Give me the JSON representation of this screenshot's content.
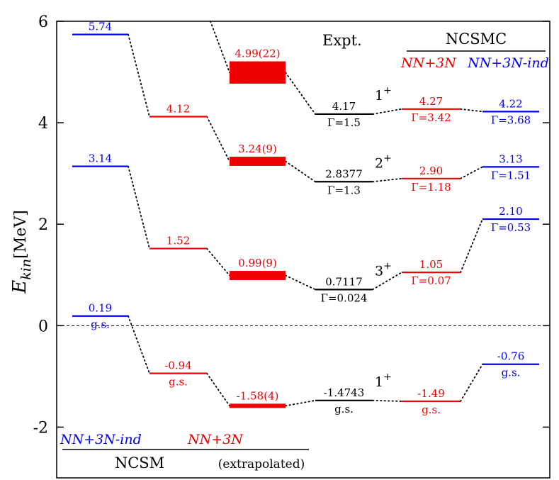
{
  "chart_data": {
    "type": "level-scheme",
    "ylabel": "E_kin [MeV]",
    "ylabel_main": "E",
    "ylabel_sub": "kin",
    "ylabel_unit": "[MeV]",
    "ylim": [
      -3,
      6
    ],
    "yticks": [
      {
        "value": -2,
        "label": "-2"
      },
      {
        "value": 0,
        "label": "0"
      },
      {
        "value": 2,
        "label": "2"
      },
      {
        "value": 4,
        "label": "4"
      },
      {
        "value": 6,
        "label": "6"
      }
    ],
    "zero_line": true,
    "headers": {
      "expt": "Expt.",
      "ncsmc": "NCSMC",
      "ncsmc_red": "NN+3N",
      "ncsmc_blue": "NN+3N-ind",
      "ncsm": "NCSM",
      "ncsm_blue": "NN+3N-ind",
      "ncsm_red": "NN+3N",
      "extrapolated": "(extrapolated)"
    },
    "colors": {
      "blue": "#0000ee",
      "red": "#ee0000",
      "black": "#000000"
    },
    "states": [
      "1+",
      "2+",
      "3+",
      "1+ (g.s.)"
    ],
    "spin_labels": [
      {
        "state": "1+",
        "value": 4.17
      },
      {
        "state": "2+",
        "value": 2.8377
      },
      {
        "state": "3+",
        "value": 0.7117
      },
      {
        "state": "1+",
        "value": -1.4743
      }
    ],
    "columns": [
      {
        "key": "ncsm_nn3n_ind",
        "color": "#0000ee",
        "levels": [
          {
            "value": 5.74,
            "label": "5.74"
          },
          {
            "value": 3.14,
            "label": "3.14"
          },
          {
            "value": 0.19,
            "label": "0.19",
            "note": "g.s."
          }
        ]
      },
      {
        "key": "ncsm_nn3n",
        "color": "#ee0000",
        "levels": [
          {
            "value": 4.12,
            "label": "4.12"
          },
          {
            "value": 1.52,
            "label": "1.52"
          },
          {
            "value": -0.94,
            "label": "-0.94",
            "note": "g.s."
          }
        ]
      },
      {
        "key": "ncsm_extrapolated",
        "color": "#ee0000",
        "levels": [
          {
            "value": 4.99,
            "error": 0.22,
            "label": "4.99(22)"
          },
          {
            "value": 3.24,
            "error": 0.09,
            "label": "3.24(9)"
          },
          {
            "value": 0.99,
            "error": 0.09,
            "label": "0.99(9)"
          },
          {
            "value": -1.58,
            "error": 0.04,
            "label": "-1.58(4)"
          }
        ]
      },
      {
        "key": "expt",
        "color": "#000000",
        "levels": [
          {
            "value": 4.17,
            "label": "4.17",
            "note": "Γ=1.5"
          },
          {
            "value": 2.8377,
            "label": "2.8377",
            "note": "Γ=1.3"
          },
          {
            "value": 0.7117,
            "label": "0.7117",
            "note": "Γ=0.024"
          },
          {
            "value": -1.4743,
            "label": "-1.4743",
            "note": "g.s."
          }
        ]
      },
      {
        "key": "ncsmc_nn3n",
        "color": "#ee0000",
        "levels": [
          {
            "value": 4.27,
            "label": "4.27",
            "note": "Γ=3.42"
          },
          {
            "value": 2.9,
            "label": "2.90",
            "note": "Γ=1.18"
          },
          {
            "value": 1.05,
            "label": "1.05",
            "note": "Γ=0.07"
          },
          {
            "value": -1.49,
            "label": "-1.49",
            "note": "g.s."
          }
        ]
      },
      {
        "key": "ncsmc_nn3n_ind",
        "color": "#0000ee",
        "levels": [
          {
            "value": 4.22,
            "label": "4.22",
            "note": "Γ=3.68"
          },
          {
            "value": 3.13,
            "label": "3.13",
            "note": "Γ=1.51"
          },
          {
            "value": 2.1,
            "label": "2.10",
            "note": "Γ=0.53"
          },
          {
            "value": -0.76,
            "label": "-0.76",
            "note": "g.s."
          }
        ]
      }
    ]
  }
}
